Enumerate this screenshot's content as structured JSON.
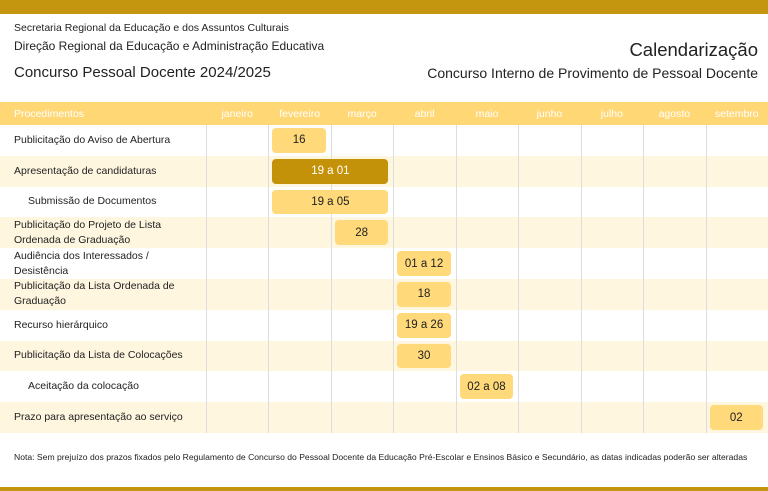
{
  "header": {
    "secretaria": "Secretaria Regional da Educação e dos Assuntos Culturais",
    "direcao": "Direção Regional da Educação e Administração Educativa",
    "concurso": "Concurso Pessoal Docente 2024/2025",
    "title": "Calendarização",
    "subtitle": "Concurso Interno de Provimento de Pessoal Docente"
  },
  "table": {
    "columns": [
      "Procedimentos",
      "janeiro",
      "fevereiro",
      "março",
      "abril",
      "maio",
      "junho",
      "julho",
      "agosto",
      "setembro"
    ],
    "rows": [
      {
        "label": "Publicitação do Aviso de Abertura",
        "bar": "16"
      },
      {
        "label": "Apresentação de candidaturas",
        "bar": "19 a 01"
      },
      {
        "label": "Submissão de Documentos",
        "bar": "19 a 05"
      },
      {
        "label": "Publicitação do Projeto de Lista Ordenada de Graduação",
        "bar": "28"
      },
      {
        "label": "Audiência dos Interessados / Desistência",
        "bar": "01 a 12"
      },
      {
        "label": "Publicitação da Lista Ordenada de Graduação",
        "bar": "18"
      },
      {
        "label": "Recurso hierárquico",
        "bar": "19 a 26"
      },
      {
        "label": "Publicitação da Lista de Colocações",
        "bar": "30"
      },
      {
        "label": "Aceitação da colocação",
        "bar": "02 a 08"
      },
      {
        "label": "Prazo para apresentação ao serviço",
        "bar": "02"
      }
    ]
  },
  "note": "Nota: Sem prejuízo dos prazos fixados pelo Regulamento de Concurso do Pessoal Docente da Educação Pré-Escolar e Ensinos Básico e Secundário, as datas indicadas poderão ser alteradas"
}
